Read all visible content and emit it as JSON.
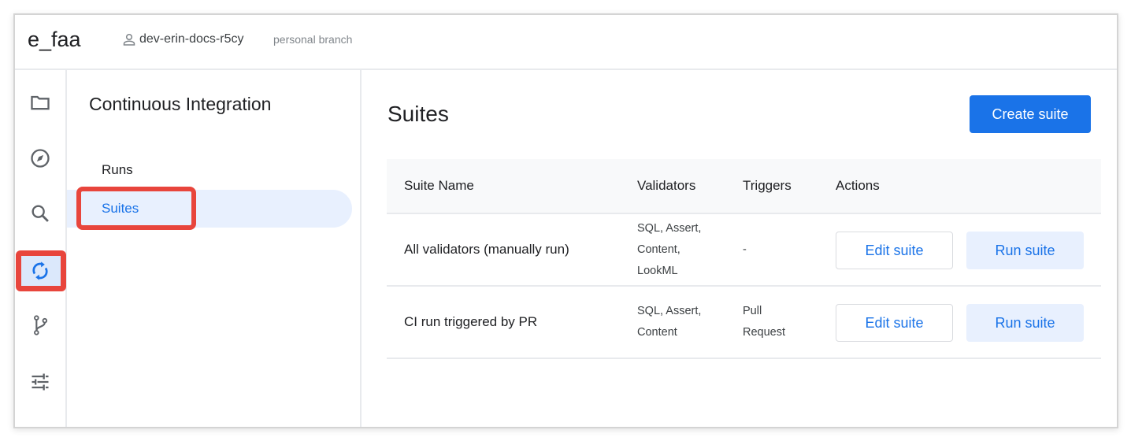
{
  "header": {
    "project": "e_faa",
    "branch": "dev-erin-docs-r5cy",
    "branch_type": "personal branch"
  },
  "rail": {
    "icons": [
      "folder-icon",
      "compass-icon",
      "search-icon",
      "sync-icon",
      "git-branch-icon",
      "sliders-icon"
    ],
    "active": "sync-icon",
    "accent": "#1a73e8",
    "highlight": "#e8453c"
  },
  "sidebar": {
    "title": "Continuous Integration",
    "items": [
      {
        "label": "Runs"
      },
      {
        "label": "Suites",
        "selected": true
      }
    ]
  },
  "main": {
    "title": "Suites",
    "create_label": "Create suite",
    "columns": [
      "Suite Name",
      "Validators",
      "Triggers",
      "Actions"
    ],
    "rows": [
      {
        "name": "All validators (manually run)",
        "validators": [
          "SQL, Assert,",
          "Content,",
          "LookML"
        ],
        "triggers": [
          "-"
        ],
        "edit": "Edit suite",
        "run": "Run suite"
      },
      {
        "name": "CI run triggered by PR",
        "validators": [
          "SQL, Assert,",
          "Content"
        ],
        "triggers": [
          "Pull",
          "Request"
        ],
        "edit": "Edit suite",
        "run": "Run suite"
      }
    ]
  }
}
